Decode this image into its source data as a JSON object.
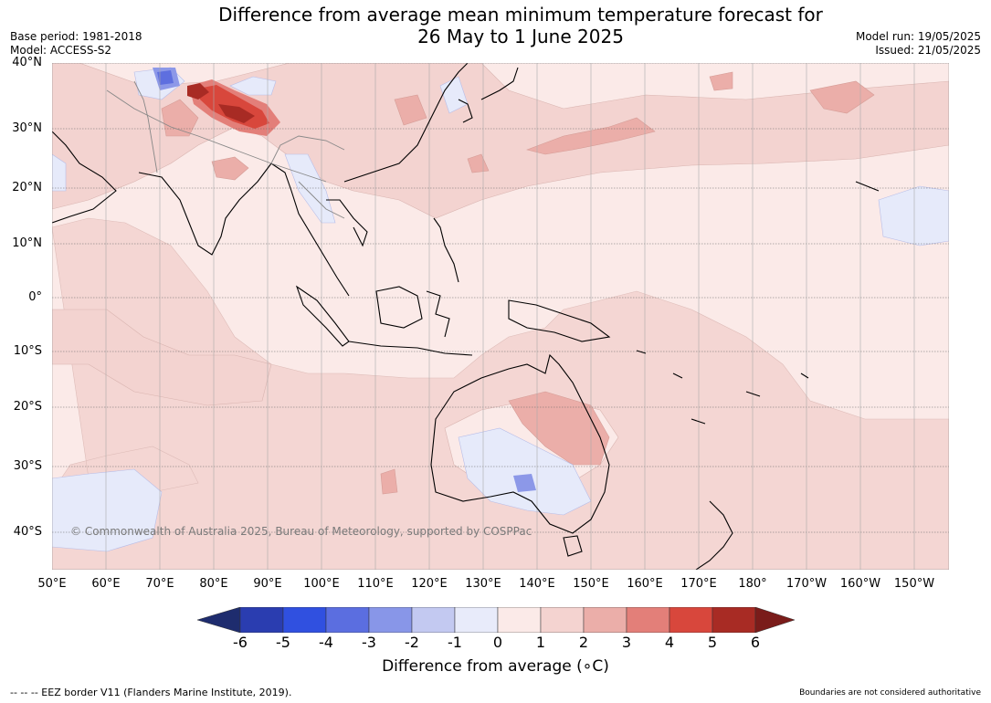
{
  "header": {
    "title_line1": "Difference from average mean minimum temperature forecast for",
    "title_line2": "26 May to 1 June 2025",
    "base_period": "Base period: 1981-2018",
    "model": "Model: ACCESS-S2",
    "model_run": "Model run: 19/05/2025",
    "issued": "Issued: 21/05/2025"
  },
  "map": {
    "lat_labels": [
      "40°N",
      "30°N",
      "20°N",
      "10°N",
      "0°",
      "10°S",
      "20°S",
      "30°S",
      "40°S"
    ],
    "lon_labels": [
      "50°E",
      "60°E",
      "70°E",
      "80°E",
      "90°E",
      "100°E",
      "110°E",
      "120°E",
      "130°E",
      "140°E",
      "150°E",
      "160°E",
      "170°E",
      "180°",
      "170°W",
      "160°W",
      "150°W"
    ],
    "copyright": "© Commonwealth of Australia 2025, Bureau of Meteorology, supported by COSPPac",
    "colors": {
      "ocean_background": "#fbeae8",
      "anomaly_0_1": "#fbeae8",
      "anomaly_1_2": "#f3d3d0",
      "anomaly_2_3": "#ebaea9",
      "anomaly_3_4": "#e37f79",
      "anomaly_4_5": "#d8473c",
      "anomaly_5_6": "#a82b24",
      "anomaly_neg1_0": "#e6eafa",
      "anomaly_neg2_neg1": "#c3c9f1",
      "anomaly_neg3_neg2": "#8c98e8",
      "anomaly_neg4_neg3": "#5e6fdf",
      "coastline": "#000000",
      "border": "#888888",
      "gridline": "#666666"
    }
  },
  "colorbar": {
    "ticks": [
      "-6",
      "-5",
      "-4",
      "-3",
      "-2",
      "-1",
      "0",
      "1",
      "2",
      "3",
      "4",
      "5",
      "6"
    ],
    "colors": [
      "#1e2c6e",
      "#2a3db0",
      "#3050e0",
      "#5b6ee0",
      "#8896e8",
      "#c3c9f1",
      "#e8ebfa",
      "#fbeae8",
      "#f4d3d0",
      "#ebaea9",
      "#e37f79",
      "#d8473c",
      "#a82b24",
      "#7a1c1a"
    ],
    "label": "Difference from average (∘C)"
  },
  "footer": {
    "eez_note": "--  --  -- EEZ border V11 (Flanders Marine Institute, 2019).",
    "disclaimer": "Boundaries are not considered authoritative"
  }
}
